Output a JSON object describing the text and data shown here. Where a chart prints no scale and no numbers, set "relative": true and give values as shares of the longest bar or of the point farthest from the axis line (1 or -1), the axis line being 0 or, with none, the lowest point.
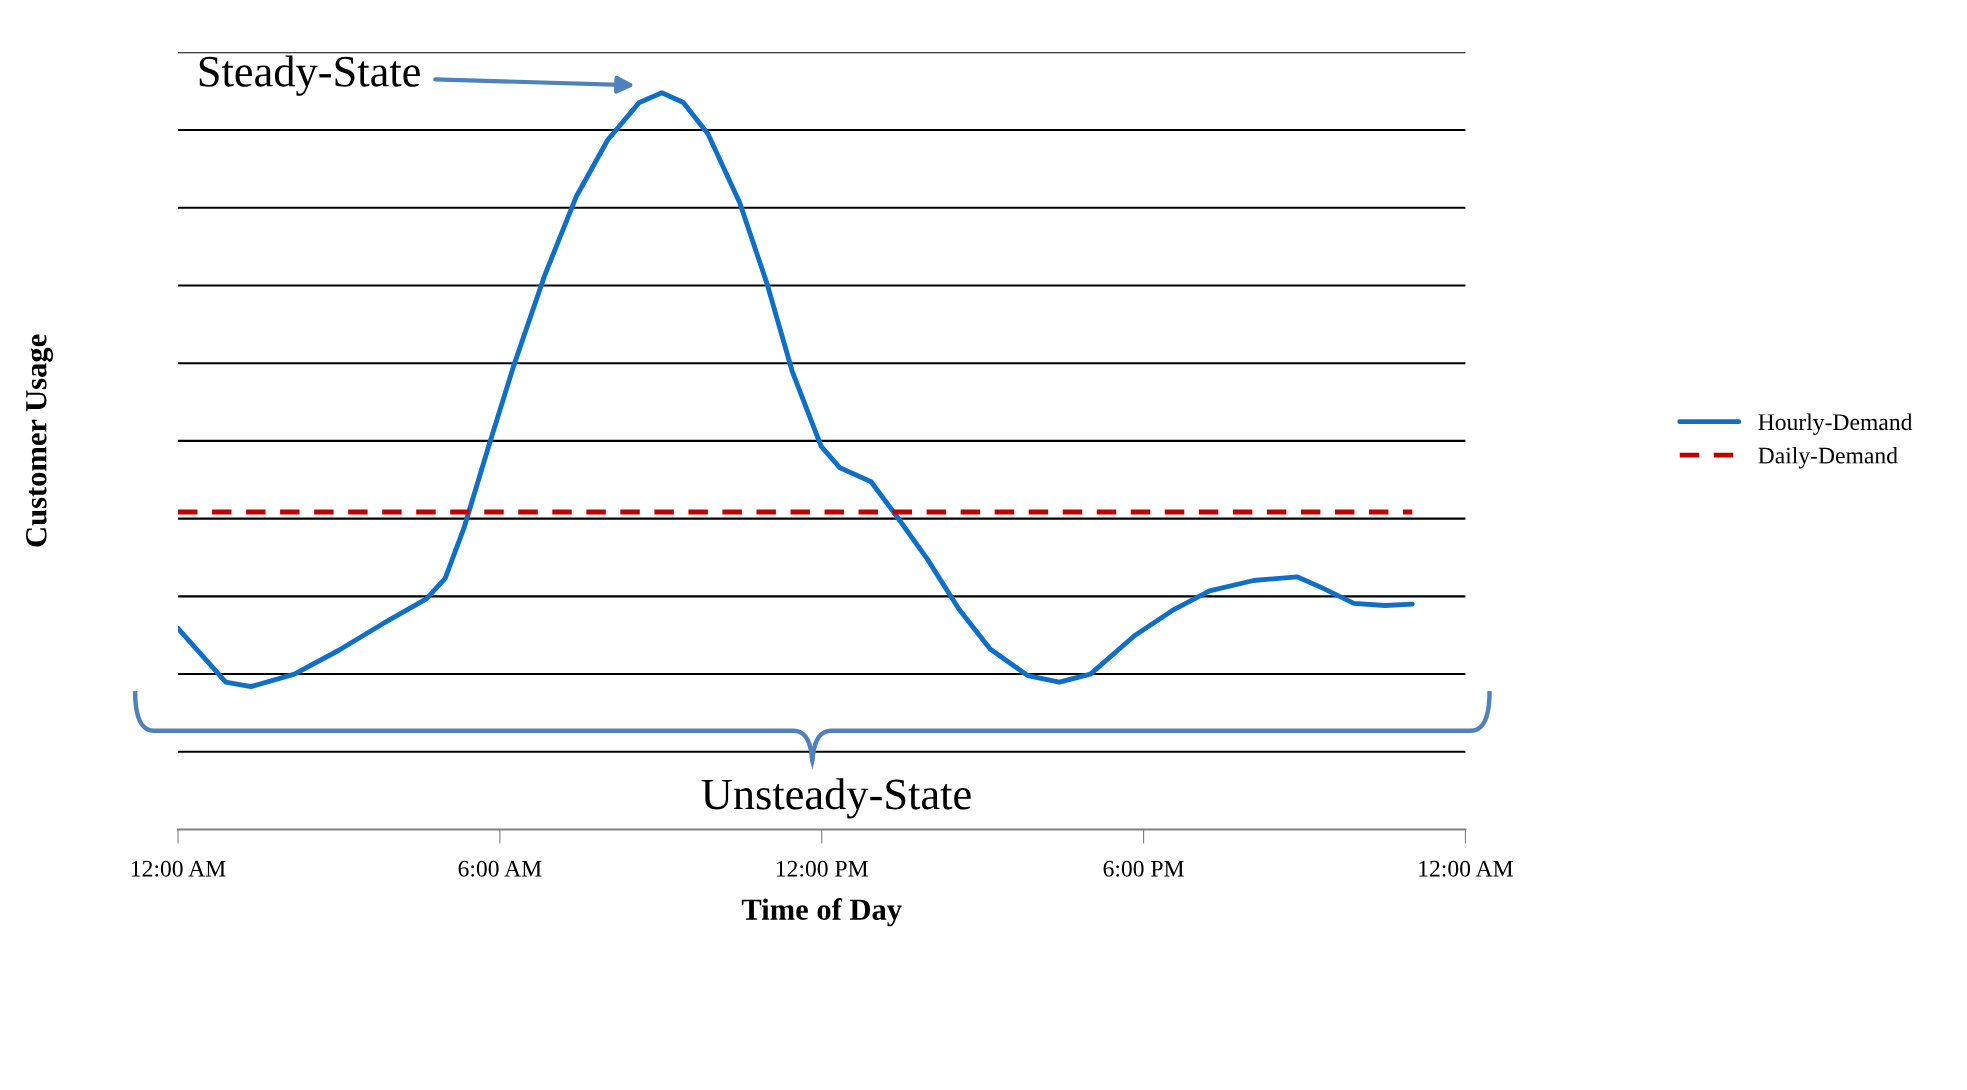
{
  "chart_data": {
    "type": "line",
    "relative": true,
    "xlabel": "Time of Day",
    "ylabel": "Customer Usage",
    "xlim": [
      0,
      24
    ],
    "xticks": [
      {
        "value": 0,
        "label": "12:00 AM"
      },
      {
        "value": 6,
        "label": "6:00 AM"
      },
      {
        "value": 12,
        "label": "12:00 PM"
      },
      {
        "value": 18,
        "label": "6:00 PM"
      },
      {
        "value": 24,
        "label": "12:00 AM"
      }
    ],
    "tick_labels": "x",
    "grid": "y",
    "legend": "right",
    "marker": "none",
    "series": [
      {
        "name": "Hourly-Demand",
        "color": "#0f6fc6",
        "line_style": "solid",
        "x": [
          0,
          0.89,
          1.36,
          2.17,
          2.99,
          3.81,
          4.63,
          4.98,
          5.33,
          5.79,
          6.26,
          6.84,
          7.43,
          8.01,
          8.6,
          9.02,
          9.42,
          9.88,
          10.47,
          10.98,
          11.45,
          11.99,
          12.34,
          12.92,
          13.39,
          13.97,
          14.56,
          15.14,
          15.84,
          16.43,
          17.01,
          17.83,
          18.53,
          19.23,
          20.05,
          20.86,
          21.33,
          21.92,
          22.5,
          23.01
        ],
        "values": [
          0.273,
          0.2,
          0.194,
          0.211,
          0.243,
          0.279,
          0.313,
          0.341,
          0.409,
          0.52,
          0.63,
          0.753,
          0.86,
          0.936,
          0.987,
          1.0,
          0.987,
          0.944,
          0.851,
          0.741,
          0.622,
          0.52,
          0.491,
          0.472,
          0.426,
          0.367,
          0.299,
          0.245,
          0.209,
          0.2,
          0.211,
          0.263,
          0.297,
          0.324,
          0.338,
          0.343,
          0.328,
          0.307,
          0.304,
          0.306
        ]
      },
      {
        "name": "Daily-Demand",
        "color": "#c00000",
        "line_style": "dashed",
        "x": [
          0,
          23.01
        ],
        "values": [
          0.431,
          0.431
        ]
      }
    ],
    "annotations": [
      "Steady-State",
      "Unsteady-State"
    ]
  }
}
